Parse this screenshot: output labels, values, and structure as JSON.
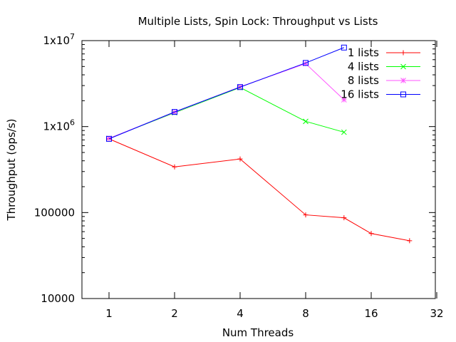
{
  "chart_data": {
    "type": "line",
    "title": "Multiple Lists, Spin Lock: Throughput vs Lists",
    "xlabel": "Num Threads",
    "ylabel": "Throughput (ops/s)",
    "x_scale": "log2",
    "y_scale": "log10",
    "xlim": [
      0.7,
      32
    ],
    "ylim": [
      10000,
      10000000
    ],
    "x_ticks": [
      1,
      2,
      4,
      8,
      16,
      32
    ],
    "x_tick_labels": [
      "1",
      "2",
      "4",
      "8",
      "16",
      "32"
    ],
    "y_ticks": [
      10000,
      100000,
      1000000,
      10000000
    ],
    "y_tick_labels": [
      {
        "base": "10000",
        "exp": ""
      },
      {
        "base": "100000",
        "exp": ""
      },
      {
        "base": "1x10",
        "exp": "6"
      },
      {
        "base": "1x10",
        "exp": "7"
      }
    ],
    "grid": false,
    "legend_position": "top-right",
    "series": [
      {
        "name": "1 lists",
        "color": "#ff0000",
        "marker": "plus",
        "x": [
          1,
          2,
          4,
          8,
          12,
          16,
          24
        ],
        "y": [
          720000,
          340000,
          420000,
          94000,
          87000,
          57000,
          47000
        ]
      },
      {
        "name": "4 lists",
        "color": "#00ff00",
        "marker": "cross",
        "x": [
          1,
          2,
          4,
          8,
          12
        ],
        "y": [
          730000,
          1450000,
          2850000,
          1150000,
          860000
        ]
      },
      {
        "name": "8 lists",
        "color": "#ff55ff",
        "marker": "asterisk",
        "x": [
          1,
          2,
          4,
          8,
          12
        ],
        "y": [
          730000,
          1470000,
          2900000,
          5400000,
          2050000
        ]
      },
      {
        "name": "16 lists",
        "color": "#0000ff",
        "marker": "square",
        "x": [
          1,
          2,
          4,
          8,
          12
        ],
        "y": [
          720000,
          1480000,
          2880000,
          5500000,
          8300000
        ]
      }
    ]
  }
}
